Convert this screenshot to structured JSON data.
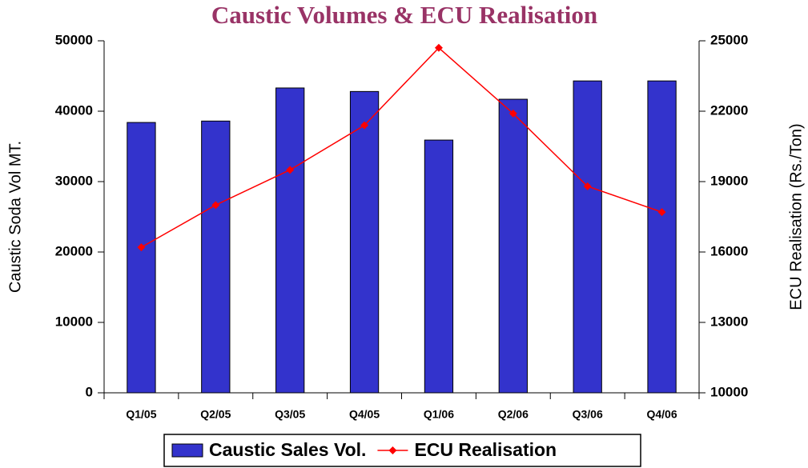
{
  "chart_data": {
    "type": "bar",
    "title": "Caustic Volumes & ECU Realisation",
    "categories": [
      "Q1/05",
      "Q2/05",
      "Q3/05",
      "Q4/05",
      "Q1/06",
      "Q2/06",
      "Q3/06",
      "Q4/06"
    ],
    "series": [
      {
        "name": "Caustic Sales Vol.",
        "type": "bar",
        "color": "#3333cc",
        "values": [
          38400,
          38600,
          43300,
          42800,
          35900,
          41700,
          44300,
          44300
        ]
      },
      {
        "name": "ECU Realisation",
        "type": "line",
        "axis": "y2",
        "color": "#ff0000",
        "values": [
          16200,
          18000,
          19500,
          21400,
          24700,
          21900,
          18800,
          17700
        ]
      }
    ],
    "y_label": "Caustic Soda Vol MT.",
    "y2_label": "ECU Realisation (Rs./Ton)",
    "ylim": [
      0,
      50000
    ],
    "yticks": [
      0,
      10000,
      20000,
      30000,
      40000,
      50000
    ],
    "y2lim": [
      10000,
      25000
    ],
    "y2ticks": [
      10000,
      13000,
      16000,
      19000,
      22000,
      25000
    ],
    "grid": false,
    "legend": "bottom"
  }
}
